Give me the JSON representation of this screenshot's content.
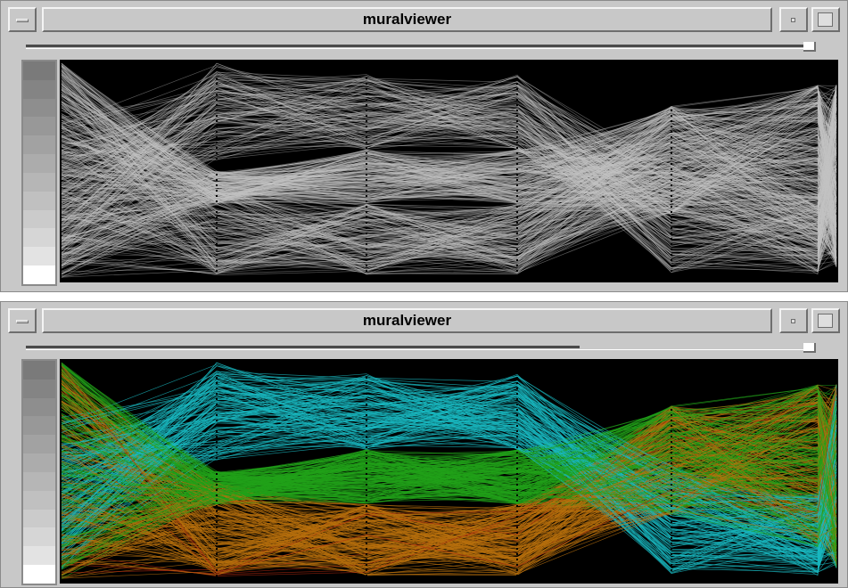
{
  "windows": [
    {
      "title": "muralviewer",
      "mode": "grayscale",
      "slider_fill": 1.0,
      "palette": [
        "#7a7a7a",
        "#848484",
        "#8e8e8e",
        "#989898",
        "#a2a2a2",
        "#acacac",
        "#b6b6b6",
        "#c0c0c0",
        "#cbcbcb",
        "#d6d6d6",
        "#e3e3e3",
        "#ffffff"
      ]
    },
    {
      "title": "muralviewer",
      "mode": "color",
      "slider_fill": 0.71,
      "palette": [
        "#7a7a7a",
        "#848484",
        "#8e8e8e",
        "#989898",
        "#a2a2a2",
        "#acacac",
        "#b6b6b6",
        "#c0c0c0",
        "#cbcbcb",
        "#d6d6d6",
        "#e3e3e3",
        "#ffffff"
      ],
      "cluster_colors": [
        "#1ab8c0",
        "#21a21a",
        "#b8700e",
        "#b02a10"
      ]
    }
  ]
}
